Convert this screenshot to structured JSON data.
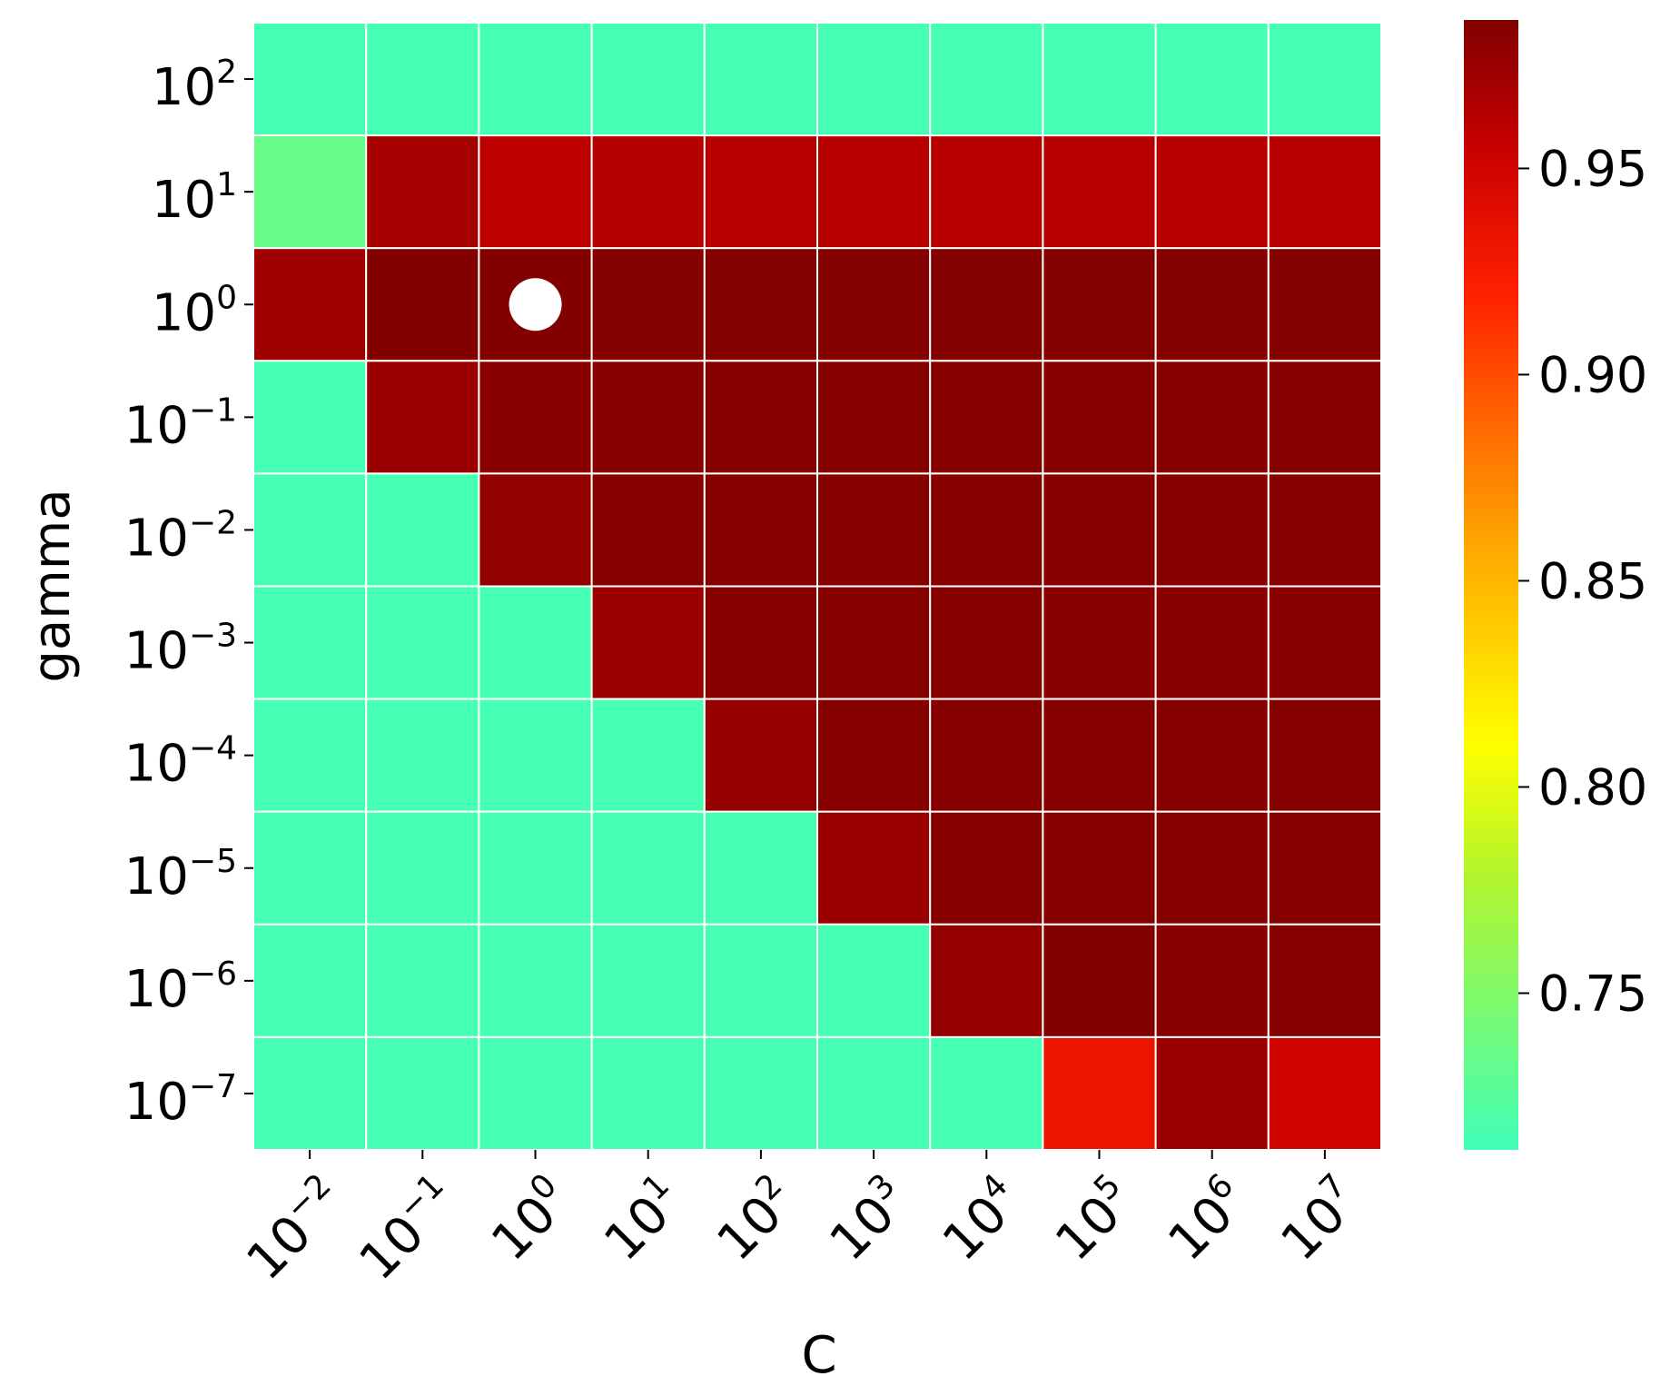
{
  "chart_data": {
    "type": "heatmap",
    "title": "",
    "xlabel": "C",
    "ylabel": "gamma",
    "x_categories": [
      "10^-2",
      "10^-1",
      "10^0",
      "10^1",
      "10^2",
      "10^3",
      "10^4",
      "10^5",
      "10^6",
      "10^7"
    ],
    "x_tick_labels": [
      {
        "base": "10",
        "exp": "−2"
      },
      {
        "base": "10",
        "exp": "−1"
      },
      {
        "base": "10",
        "exp": "0"
      },
      {
        "base": "10",
        "exp": "1"
      },
      {
        "base": "10",
        "exp": "2"
      },
      {
        "base": "10",
        "exp": "3"
      },
      {
        "base": "10",
        "exp": "4"
      },
      {
        "base": "10",
        "exp": "5"
      },
      {
        "base": "10",
        "exp": "6"
      },
      {
        "base": "10",
        "exp": "7"
      }
    ],
    "y_categories": [
      "10^2",
      "10^1",
      "10^0",
      "10^-1",
      "10^-2",
      "10^-3",
      "10^-4",
      "10^-5",
      "10^-6",
      "10^-7"
    ],
    "y_tick_labels": [
      {
        "base": "10",
        "exp": "2"
      },
      {
        "base": "10",
        "exp": "1"
      },
      {
        "base": "10",
        "exp": "0"
      },
      {
        "base": "10",
        "exp": "−1"
      },
      {
        "base": "10",
        "exp": "−2"
      },
      {
        "base": "10",
        "exp": "−3"
      },
      {
        "base": "10",
        "exp": "−4"
      },
      {
        "base": "10",
        "exp": "−5"
      },
      {
        "base": "10",
        "exp": "−6"
      },
      {
        "base": "10",
        "exp": "−7"
      }
    ],
    "values": [
      [
        0.715,
        0.715,
        0.715,
        0.715,
        0.715,
        0.715,
        0.715,
        0.715,
        0.715,
        0.715
      ],
      [
        0.735,
        0.97,
        0.96,
        0.963,
        0.962,
        0.962,
        0.962,
        0.962,
        0.962,
        0.962
      ],
      [
        0.973,
        0.985,
        0.985,
        0.984,
        0.984,
        0.984,
        0.984,
        0.984,
        0.984,
        0.984
      ],
      [
        0.715,
        0.975,
        0.982,
        0.983,
        0.983,
        0.983,
        0.983,
        0.983,
        0.983,
        0.983
      ],
      [
        0.715,
        0.715,
        0.978,
        0.983,
        0.983,
        0.983,
        0.983,
        0.983,
        0.983,
        0.983
      ],
      [
        0.715,
        0.715,
        0.715,
        0.975,
        0.983,
        0.983,
        0.983,
        0.982,
        0.982,
        0.982
      ],
      [
        0.715,
        0.715,
        0.715,
        0.715,
        0.977,
        0.983,
        0.983,
        0.983,
        0.983,
        0.983
      ],
      [
        0.715,
        0.715,
        0.715,
        0.715,
        0.715,
        0.975,
        0.983,
        0.983,
        0.983,
        0.983
      ],
      [
        0.715,
        0.715,
        0.715,
        0.715,
        0.715,
        0.715,
        0.977,
        0.985,
        0.982,
        0.983
      ],
      [
        0.715,
        0.715,
        0.715,
        0.715,
        0.715,
        0.715,
        0.715,
        0.932,
        0.975,
        0.95
      ]
    ],
    "marker": {
      "x": "10^0",
      "y": "10^0",
      "color": "#ffffff",
      "shape": "circle"
    },
    "colorbar": {
      "vmin": 0.712,
      "vmax": 0.986,
      "ticks": [
        0.75,
        0.8,
        0.85,
        0.9,
        0.95
      ],
      "tick_labels": [
        "0.75",
        "0.80",
        "0.85",
        "0.90",
        "0.95"
      ],
      "colormap_stops": [
        {
          "v": 0.712,
          "color": "#40ffb8"
        },
        {
          "v": 0.78,
          "color": "#b5f52a"
        },
        {
          "v": 0.81,
          "color": "#ffff00"
        },
        {
          "v": 0.86,
          "color": "#ffa500"
        },
        {
          "v": 0.92,
          "color": "#ff2000"
        },
        {
          "v": 0.955,
          "color": "#c80000"
        },
        {
          "v": 0.986,
          "color": "#800000"
        }
      ]
    },
    "cell_border_color": "#ffffff",
    "grid": false
  }
}
